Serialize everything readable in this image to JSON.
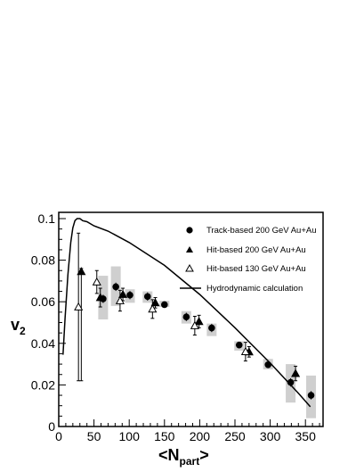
{
  "chart_data": {
    "type": "scatter",
    "title": "",
    "xlabel": {
      "main": "<N",
      "sub": "part",
      "close": ">"
    },
    "ylabel": {
      "main": "v",
      "sub": "2"
    },
    "xlim": [
      0,
      375
    ],
    "ylim": [
      0,
      0.103
    ],
    "x_ticks": [
      "0",
      "50",
      "100",
      "150",
      "200",
      "250",
      "300",
      "350"
    ],
    "y_ticks": [
      "0",
      "0.02",
      "0.04",
      "0.06",
      "0.08",
      "0.1"
    ],
    "grid": false,
    "legend_position": "top-right",
    "legend": [
      {
        "label": "Track-based 200 GeV Au+Au",
        "marker": "filled-circle"
      },
      {
        "label": "Hit-based 200 GeV Au+Au",
        "marker": "filled-triangle"
      },
      {
        "label": "Hit-based 130 GeV Au+Au",
        "marker": "open-triangle"
      },
      {
        "label": "Hydrodynamic calculation",
        "marker": "line"
      }
    ],
    "series": [
      {
        "name": "Track-based 200 GeV Au+Au",
        "marker": "filled-circle",
        "points": [
          {
            "x": 63,
            "y": 0.0614,
            "err": 0.002,
            "box": [
              0.0515,
              0.0725
            ]
          },
          {
            "x": 81,
            "y": 0.0672,
            "err": 0.002,
            "box": [
              0.058,
              0.077
            ]
          },
          {
            "x": 101,
            "y": 0.0632,
            "err": 0.002,
            "box": [
              0.0595,
              0.066
            ]
          },
          {
            "x": 126,
            "y": 0.0625,
            "err": 0.002,
            "box": [
              0.0595,
              0.065
            ]
          },
          {
            "x": 150,
            "y": 0.0586,
            "err": 0.0015,
            "box": [
              0.0575,
              0.0605
            ]
          },
          {
            "x": 181,
            "y": 0.0527,
            "err": 0.002,
            "box": [
              0.0495,
              0.0555
            ]
          },
          {
            "x": 217,
            "y": 0.0474,
            "err": 0.002,
            "box": [
              0.0435,
              0.0495
            ]
          },
          {
            "x": 256,
            "y": 0.0392,
            "err": 0.0015,
            "box": [
              0.0365,
              0.041
            ]
          },
          {
            "x": 297,
            "y": 0.0297,
            "err": 0.0015,
            "box": [
              0.0275,
              0.0325
            ]
          },
          {
            "x": 329,
            "y": 0.0212,
            "err": 0.002,
            "box": [
              0.0115,
              0.03
            ]
          },
          {
            "x": 358,
            "y": 0.015,
            "err": 0.002,
            "box": [
              0.004,
              0.0245
            ]
          }
        ]
      },
      {
        "name": "Hit-based 200 GeV Au+Au",
        "marker": "filled-triangle",
        "points": [
          {
            "x": 32,
            "y": 0.0745,
            "err_lo": 0.0525,
            "err_hi": 0.0015
          },
          {
            "x": 59,
            "y": 0.062,
            "err_lo": 0.0045,
            "err_hi": 0.0045
          },
          {
            "x": 91,
            "y": 0.0635,
            "err_lo": 0.003,
            "err_hi": 0.003
          },
          {
            "x": 137,
            "y": 0.0595,
            "err_lo": 0.0025,
            "err_hi": 0.0025
          },
          {
            "x": 199,
            "y": 0.0505,
            "err_lo": 0.003,
            "err_hi": 0.003
          },
          {
            "x": 270,
            "y": 0.0359,
            "err_lo": 0.0025,
            "err_hi": 0.0025
          },
          {
            "x": 336,
            "y": 0.0255,
            "err_lo": 0.0035,
            "err_hi": 0.0035
          }
        ]
      },
      {
        "name": "Hit-based 130 GeV Au+Au",
        "marker": "open-triangle",
        "points": [
          {
            "x": 28,
            "y": 0.0575,
            "err_lo": 0.0355,
            "err_hi": 0.0355
          },
          {
            "x": 54,
            "y": 0.0695,
            "err_lo": 0.0055,
            "err_hi": 0.0055
          },
          {
            "x": 87,
            "y": 0.0605,
            "err_lo": 0.005,
            "err_hi": 0.005
          },
          {
            "x": 133,
            "y": 0.0565,
            "err_lo": 0.0045,
            "err_hi": 0.0045
          },
          {
            "x": 193,
            "y": 0.0485,
            "err_lo": 0.0045,
            "err_hi": 0.0045
          },
          {
            "x": 265,
            "y": 0.036,
            "err_lo": 0.0045,
            "err_hi": 0.0045
          }
        ]
      },
      {
        "name": "Hydrodynamic calculation",
        "type": "line",
        "x": [
          6,
          9,
          13,
          17,
          20,
          23,
          26,
          30,
          34,
          40,
          50,
          70,
          100,
          150,
          200,
          250,
          300,
          340,
          357
        ],
        "y": [
          0.0345,
          0.052,
          0.073,
          0.0885,
          0.0955,
          0.099,
          0.1,
          0.1,
          0.099,
          0.0985,
          0.0965,
          0.094,
          0.0885,
          0.0775,
          0.0635,
          0.0475,
          0.0305,
          0.016,
          0.0095
        ]
      }
    ]
  }
}
